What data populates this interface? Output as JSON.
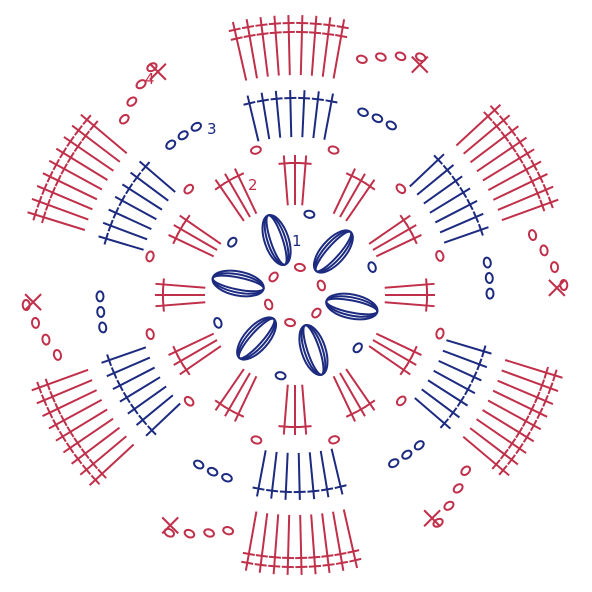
{
  "rounds": [
    {
      "label": "1"
    },
    {
      "label": "2"
    },
    {
      "label": "3"
    },
    {
      "label": "4"
    }
  ]
}
